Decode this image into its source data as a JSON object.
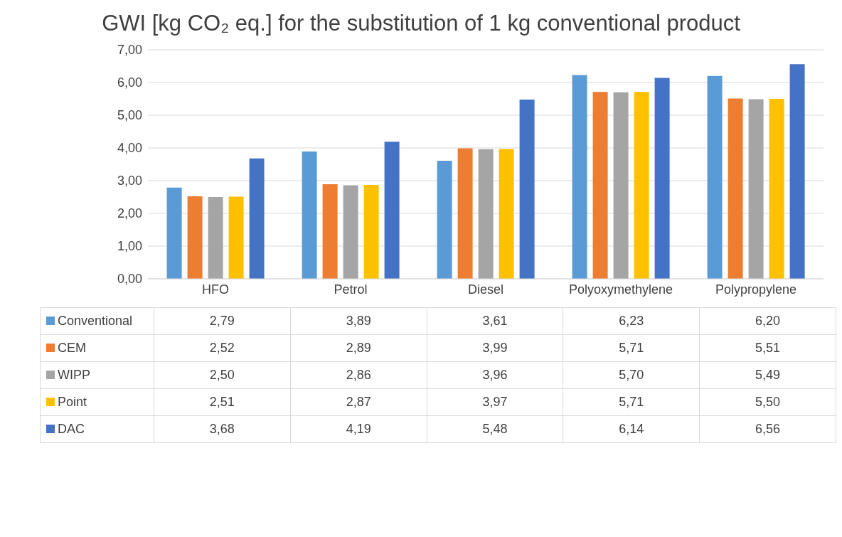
{
  "chart_data": {
    "type": "bar",
    "title": "GWI [kg CO₂ eq.] for the substitution of 1 kg conventional product",
    "categories": [
      "HFO",
      "Petrol",
      "Diesel",
      "Polyoxymethylene",
      "Polypropylene"
    ],
    "series": [
      {
        "name": "Conventional",
        "color": "#5b9bd5",
        "values": [
          2.79,
          3.89,
          3.61,
          6.23,
          6.2
        ],
        "value_labels": [
          "2,79",
          "3,89",
          "3,61",
          "6,23",
          "6,20"
        ]
      },
      {
        "name": "CEM",
        "color": "#ed7d31",
        "values": [
          2.52,
          2.89,
          3.99,
          5.71,
          5.51
        ],
        "value_labels": [
          "2,52",
          "2,89",
          "3,99",
          "5,71",
          "5,51"
        ]
      },
      {
        "name": "WIPP",
        "color": "#a5a5a5",
        "values": [
          2.5,
          2.86,
          3.96,
          5.7,
          5.49
        ],
        "value_labels": [
          "2,50",
          "2,86",
          "3,96",
          "5,70",
          "5,49"
        ]
      },
      {
        "name": "Point",
        "color": "#ffc000",
        "values": [
          2.51,
          2.87,
          3.97,
          5.71,
          5.5
        ],
        "value_labels": [
          "2,51",
          "2,87",
          "3,97",
          "5,71",
          "5,50"
        ]
      },
      {
        "name": "DAC",
        "color": "#4472c4",
        "values": [
          3.68,
          4.19,
          5.48,
          6.14,
          6.56
        ],
        "value_labels": [
          "3,68",
          "4,19",
          "5,48",
          "6,14",
          "6,56"
        ]
      }
    ],
    "ylim": [
      0,
      7
    ],
    "yticks": [
      {
        "value": 0,
        "label": "0,00"
      },
      {
        "value": 1,
        "label": "1,00"
      },
      {
        "value": 2,
        "label": "2,00"
      },
      {
        "value": 3,
        "label": "3,00"
      },
      {
        "value": 4,
        "label": "4,00"
      },
      {
        "value": 5,
        "label": "5,00"
      },
      {
        "value": 6,
        "label": "6,00"
      },
      {
        "value": 7,
        "label": "7,00"
      }
    ],
    "grid": "y",
    "legend": "bottom"
  }
}
